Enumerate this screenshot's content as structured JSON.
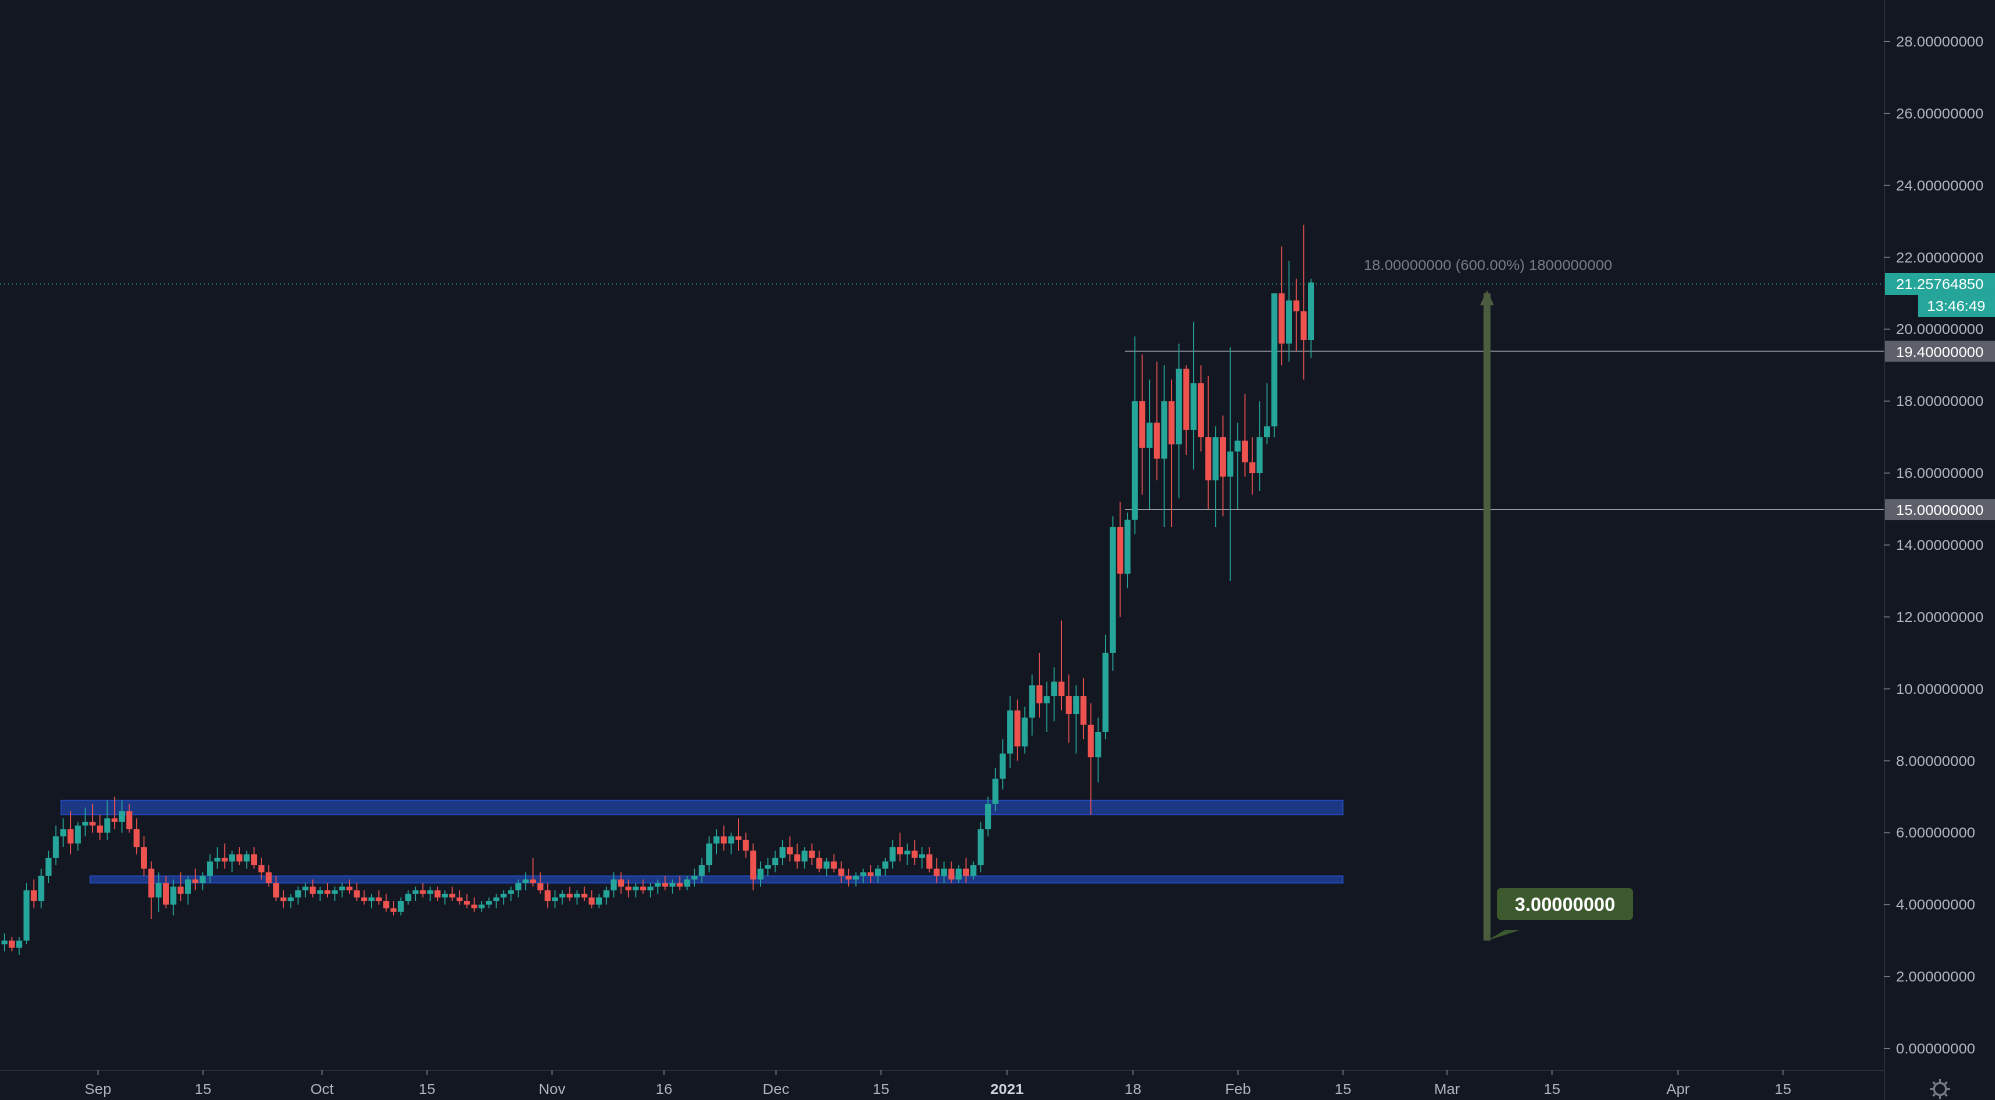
{
  "chart_data": {
    "type": "candlestick",
    "ylim": [
      -0.5,
      29
    ],
    "y_ticks": [
      "28.00000000",
      "26.00000000",
      "24.00000000",
      "22.00000000",
      "20.00000000",
      "18.00000000",
      "16.00000000",
      "14.00000000",
      "12.00000000",
      "10.00000000",
      "8.00000000",
      "6.00000000",
      "4.00000000",
      "2.00000000",
      "0.00000000"
    ],
    "x_ticks": [
      {
        "label": "Sep"
      },
      {
        "label": "15"
      },
      {
        "label": "Oct"
      },
      {
        "label": "15"
      },
      {
        "label": "Nov"
      },
      {
        "label": "16"
      },
      {
        "label": "Dec"
      },
      {
        "label": "15"
      },
      {
        "label": "2021",
        "bold": true
      },
      {
        "label": "18"
      },
      {
        "label": "Feb"
      },
      {
        "label": "15"
      },
      {
        "label": "Mar"
      },
      {
        "label": "15"
      },
      {
        "label": "Apr"
      },
      {
        "label": "15"
      }
    ],
    "current_price": "21.25764850",
    "countdown": "13:46:49",
    "levels": [
      {
        "value": 19.4,
        "label": "19.40000000"
      },
      {
        "value": 15.0,
        "label": "15.00000000"
      }
    ],
    "zones": [
      {
        "low": 6.5,
        "high": 6.9
      },
      {
        "low": 4.6,
        "high": 4.8
      }
    ],
    "measure": {
      "from": 3.0,
      "to": 21.0,
      "text": "18.00000000 (600.00%) 1800000000",
      "start_label": "3.00000000"
    },
    "candles": [
      [
        2.9,
        3.2,
        2.7,
        3.0
      ],
      [
        3.0,
        3.1,
        2.7,
        2.8
      ],
      [
        2.8,
        3.1,
        2.6,
        3.0
      ],
      [
        3.0,
        4.6,
        2.9,
        4.4
      ],
      [
        4.4,
        4.7,
        3.9,
        4.1
      ],
      [
        4.1,
        5.0,
        3.9,
        4.8
      ],
      [
        4.8,
        5.5,
        4.6,
        5.3
      ],
      [
        5.3,
        6.2,
        5.1,
        5.9
      ],
      [
        5.9,
        6.4,
        5.6,
        6.1
      ],
      [
        6.1,
        6.6,
        5.4,
        5.7
      ],
      [
        5.7,
        6.3,
        5.5,
        6.2
      ],
      [
        6.2,
        6.7,
        5.9,
        6.3
      ],
      [
        6.3,
        6.8,
        6.0,
        6.2
      ],
      [
        6.2,
        6.5,
        5.8,
        6.0
      ],
      [
        6.0,
        6.9,
        5.8,
        6.4
      ],
      [
        6.4,
        7.0,
        6.1,
        6.3
      ],
      [
        6.3,
        6.9,
        6.0,
        6.6
      ],
      [
        6.6,
        6.8,
        6.0,
        6.1
      ],
      [
        6.1,
        6.4,
        5.4,
        5.6
      ],
      [
        5.6,
        5.9,
        4.8,
        5.0
      ],
      [
        5.0,
        5.2,
        3.6,
        4.2
      ],
      [
        4.2,
        4.9,
        3.8,
        4.6
      ],
      [
        4.6,
        4.8,
        3.9,
        4.0
      ],
      [
        4.0,
        4.7,
        3.7,
        4.5
      ],
      [
        4.5,
        4.9,
        4.1,
        4.3
      ],
      [
        4.3,
        4.8,
        4.0,
        4.7
      ],
      [
        4.7,
        5.0,
        4.4,
        4.6
      ],
      [
        4.6,
        4.9,
        4.4,
        4.8
      ],
      [
        4.8,
        5.4,
        4.6,
        5.2
      ],
      [
        5.2,
        5.6,
        5.0,
        5.3
      ],
      [
        5.3,
        5.7,
        5.0,
        5.2
      ],
      [
        5.2,
        5.5,
        4.9,
        5.4
      ],
      [
        5.4,
        5.6,
        5.1,
        5.2
      ],
      [
        5.2,
        5.5,
        5.0,
        5.4
      ],
      [
        5.4,
        5.6,
        5.0,
        5.1
      ],
      [
        5.1,
        5.3,
        4.7,
        4.9
      ],
      [
        4.9,
        5.1,
        4.5,
        4.6
      ],
      [
        4.6,
        4.8,
        4.1,
        4.2
      ],
      [
        4.2,
        4.4,
        3.9,
        4.1
      ],
      [
        4.1,
        4.3,
        3.9,
        4.2
      ],
      [
        4.2,
        4.5,
        4.0,
        4.4
      ],
      [
        4.4,
        4.6,
        4.2,
        4.5
      ],
      [
        4.5,
        4.7,
        4.2,
        4.3
      ],
      [
        4.3,
        4.5,
        4.1,
        4.4
      ],
      [
        4.4,
        4.6,
        4.2,
        4.3
      ],
      [
        4.3,
        4.5,
        4.1,
        4.4
      ],
      [
        4.4,
        4.6,
        4.2,
        4.5
      ],
      [
        4.5,
        4.7,
        4.3,
        4.4
      ],
      [
        4.4,
        4.6,
        4.1,
        4.2
      ],
      [
        4.2,
        4.4,
        4.0,
        4.1
      ],
      [
        4.1,
        4.3,
        3.9,
        4.2
      ],
      [
        4.2,
        4.4,
        4.0,
        4.1
      ],
      [
        4.1,
        4.3,
        3.8,
        3.9
      ],
      [
        3.9,
        4.1,
        3.7,
        3.8
      ],
      [
        3.8,
        4.2,
        3.7,
        4.1
      ],
      [
        4.1,
        4.4,
        4.0,
        4.3
      ],
      [
        4.3,
        4.5,
        4.1,
        4.4
      ],
      [
        4.4,
        4.6,
        4.2,
        4.3
      ],
      [
        4.3,
        4.5,
        4.1,
        4.4
      ],
      [
        4.4,
        4.5,
        4.1,
        4.2
      ],
      [
        4.2,
        4.4,
        4.0,
        4.3
      ],
      [
        4.3,
        4.5,
        4.1,
        4.2
      ],
      [
        4.2,
        4.4,
        4.0,
        4.1
      ],
      [
        4.1,
        4.3,
        3.9,
        4.0
      ],
      [
        4.0,
        4.2,
        3.8,
        3.9
      ],
      [
        3.9,
        4.1,
        3.8,
        4.0
      ],
      [
        4.0,
        4.2,
        3.9,
        4.1
      ],
      [
        4.1,
        4.3,
        3.9,
        4.2
      ],
      [
        4.2,
        4.4,
        4.0,
        4.3
      ],
      [
        4.3,
        4.5,
        4.1,
        4.4
      ],
      [
        4.4,
        4.7,
        4.2,
        4.6
      ],
      [
        4.6,
        4.9,
        4.4,
        4.7
      ],
      [
        4.7,
        5.3,
        4.5,
        4.6
      ],
      [
        4.6,
        4.9,
        4.3,
        4.4
      ],
      [
        4.4,
        4.6,
        3.9,
        4.1
      ],
      [
        4.1,
        4.4,
        3.9,
        4.2
      ],
      [
        4.2,
        4.4,
        4.0,
        4.3
      ],
      [
        4.3,
        4.5,
        4.1,
        4.2
      ],
      [
        4.2,
        4.4,
        4.0,
        4.3
      ],
      [
        4.3,
        4.5,
        4.1,
        4.2
      ],
      [
        4.2,
        4.4,
        3.9,
        4.0
      ],
      [
        4.0,
        4.3,
        3.9,
        4.2
      ],
      [
        4.2,
        4.5,
        4.0,
        4.4
      ],
      [
        4.4,
        4.9,
        4.2,
        4.7
      ],
      [
        4.7,
        4.9,
        4.3,
        4.5
      ],
      [
        4.5,
        4.7,
        4.2,
        4.4
      ],
      [
        4.4,
        4.6,
        4.2,
        4.5
      ],
      [
        4.5,
        4.7,
        4.3,
        4.4
      ],
      [
        4.4,
        4.6,
        4.2,
        4.5
      ],
      [
        4.5,
        4.7,
        4.3,
        4.6
      ],
      [
        4.6,
        4.8,
        4.4,
        4.5
      ],
      [
        4.5,
        4.7,
        4.3,
        4.6
      ],
      [
        4.6,
        4.8,
        4.4,
        4.5
      ],
      [
        4.5,
        4.8,
        4.4,
        4.7
      ],
      [
        4.7,
        5.0,
        4.5,
        4.8
      ],
      [
        4.8,
        5.3,
        4.6,
        5.1
      ],
      [
        5.1,
        5.9,
        4.9,
        5.7
      ],
      [
        5.7,
        6.1,
        5.4,
        5.9
      ],
      [
        5.9,
        6.2,
        5.5,
        5.7
      ],
      [
        5.7,
        6.0,
        5.4,
        5.9
      ],
      [
        5.9,
        6.4,
        5.5,
        5.8
      ],
      [
        5.8,
        6.0,
        5.3,
        5.5
      ],
      [
        5.5,
        5.7,
        4.4,
        4.7
      ],
      [
        4.7,
        5.2,
        4.5,
        5.0
      ],
      [
        5.0,
        5.3,
        4.8,
        5.1
      ],
      [
        5.1,
        5.5,
        4.9,
        5.3
      ],
      [
        5.3,
        5.8,
        5.1,
        5.6
      ],
      [
        5.6,
        5.9,
        5.2,
        5.4
      ],
      [
        5.4,
        5.7,
        5.0,
        5.2
      ],
      [
        5.2,
        5.6,
        5.0,
        5.5
      ],
      [
        5.5,
        5.7,
        5.1,
        5.3
      ],
      [
        5.3,
        5.5,
        4.9,
        5.0
      ],
      [
        5.0,
        5.3,
        4.8,
        5.2
      ],
      [
        5.2,
        5.4,
        4.9,
        5.0
      ],
      [
        5.0,
        5.2,
        4.6,
        4.8
      ],
      [
        4.8,
        5.0,
        4.5,
        4.7
      ],
      [
        4.7,
        4.9,
        4.5,
        4.8
      ],
      [
        4.8,
        5.0,
        4.6,
        4.9
      ],
      [
        4.9,
        5.1,
        4.6,
        4.8
      ],
      [
        4.8,
        5.1,
        4.6,
        5.0
      ],
      [
        5.0,
        5.3,
        4.8,
        5.2
      ],
      [
        5.2,
        5.8,
        5.0,
        5.6
      ],
      [
        5.6,
        6.0,
        5.2,
        5.4
      ],
      [
        5.4,
        5.7,
        5.1,
        5.5
      ],
      [
        5.5,
        5.8,
        5.1,
        5.3
      ],
      [
        5.3,
        5.6,
        5.0,
        5.4
      ],
      [
        5.4,
        5.6,
        4.9,
        5.0
      ],
      [
        5.0,
        5.3,
        4.6,
        4.8
      ],
      [
        4.8,
        5.2,
        4.6,
        5.0
      ],
      [
        5.0,
        5.2,
        4.6,
        4.7
      ],
      [
        4.7,
        5.1,
        4.6,
        5.0
      ],
      [
        5.0,
        5.3,
        4.6,
        4.8
      ],
      [
        4.8,
        5.2,
        4.7,
        5.1
      ],
      [
        5.1,
        6.3,
        4.9,
        6.1
      ],
      [
        6.1,
        7.0,
        5.9,
        6.8
      ],
      [
        6.8,
        7.8,
        6.6,
        7.5
      ],
      [
        7.5,
        8.6,
        7.2,
        8.2
      ],
      [
        8.2,
        9.8,
        7.8,
        9.4
      ],
      [
        9.4,
        9.7,
        8.0,
        8.4
      ],
      [
        8.4,
        9.5,
        8.2,
        9.2
      ],
      [
        9.2,
        10.4,
        8.7,
        10.1
      ],
      [
        10.1,
        11.0,
        9.2,
        9.6
      ],
      [
        9.6,
        10.2,
        8.8,
        9.8
      ],
      [
        9.8,
        10.6,
        9.1,
        10.2
      ],
      [
        10.2,
        11.9,
        9.4,
        9.8
      ],
      [
        9.8,
        10.4,
        8.5,
        9.3
      ],
      [
        9.3,
        10.1,
        8.2,
        9.8
      ],
      [
        9.8,
        10.3,
        8.6,
        9.0
      ],
      [
        9.0,
        9.6,
        6.5,
        8.1
      ],
      [
        8.1,
        9.2,
        7.4,
        8.8
      ],
      [
        8.8,
        11.5,
        8.6,
        11.0
      ],
      [
        11.0,
        14.8,
        10.5,
        14.5
      ],
      [
        14.5,
        15.2,
        12.0,
        13.2
      ],
      [
        13.2,
        14.9,
        12.8,
        14.7
      ],
      [
        14.7,
        19.8,
        14.3,
        18.0
      ],
      [
        18.0,
        19.3,
        15.4,
        16.7
      ],
      [
        16.7,
        18.6,
        15.0,
        17.4
      ],
      [
        17.4,
        19.1,
        15.8,
        16.4
      ],
      [
        16.4,
        19.0,
        14.5,
        18.0
      ],
      [
        18.0,
        18.6,
        14.5,
        16.8
      ],
      [
        16.8,
        19.6,
        15.3,
        18.9
      ],
      [
        18.9,
        19.0,
        16.5,
        17.2
      ],
      [
        17.2,
        20.2,
        16.1,
        18.5
      ],
      [
        18.5,
        19.0,
        16.6,
        17.0
      ],
      [
        17.0,
        18.7,
        15.0,
        15.8
      ],
      [
        15.8,
        17.3,
        14.5,
        17.0
      ],
      [
        17.0,
        17.6,
        14.8,
        15.9
      ],
      [
        15.9,
        19.5,
        13.0,
        16.6
      ],
      [
        16.6,
        17.4,
        15.0,
        16.9
      ],
      [
        16.9,
        18.2,
        15.9,
        16.3
      ],
      [
        16.3,
        17.0,
        15.4,
        16.0
      ],
      [
        16.0,
        18.0,
        15.5,
        17.0
      ],
      [
        17.0,
        18.5,
        16.8,
        17.3
      ],
      [
        17.3,
        21.0,
        17.0,
        21.0
      ],
      [
        21.0,
        22.3,
        19.0,
        19.6
      ],
      [
        19.6,
        21.9,
        19.1,
        20.8
      ],
      [
        20.8,
        21.4,
        19.4,
        20.5
      ],
      [
        20.5,
        22.9,
        18.6,
        19.7
      ],
      [
        19.7,
        21.4,
        19.2,
        21.3
      ]
    ]
  }
}
